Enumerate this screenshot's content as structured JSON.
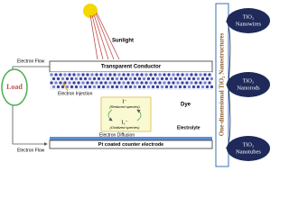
{
  "sunlight": "Sunlight",
  "electron_flow_top": "Electron Flow",
  "transparent_conductor": "Transparent Conductor",
  "electron_injection": "Electron Injection",
  "dye": "Dye",
  "load": "Load",
  "redox": {
    "reduced": "I⁻",
    "reduced_note": "(Reduced species)",
    "oxidized": "I₃⁻",
    "oxidized_note": "(Oxidized species)"
  },
  "electrolyte": "Electrolyte",
  "electron_diffusion": "Electron Diffusion",
  "counter_electrode": "Pt coated counter electrode",
  "electron_flow_bottom": "Electron Flow",
  "nanostructures_title": "One-dimensional TiO₂ Nanostructures",
  "nodes": [
    {
      "line1": "TiO₂",
      "line2": "Nanowires"
    },
    {
      "line1": "TiO₂",
      "line2": "Nanorods"
    },
    {
      "line1": "TiO₂",
      "line2": "Nanotubes"
    }
  ]
}
